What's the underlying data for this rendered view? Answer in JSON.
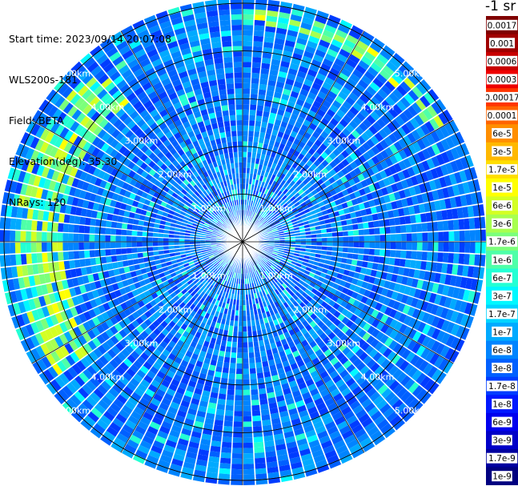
{
  "info": {
    "start_time": "Start time: 2023/09/14 20:07:08",
    "instrument": "WLS200s-181",
    "field": "Field: BETA",
    "elevation": "Elevation(deg): 35.30",
    "nrays": "NRays: 120"
  },
  "colorbar": {
    "unit": "-1 sr",
    "labels": [
      "0.0017",
      "0.001",
      "0.0006",
      "0.0003",
      "0.00017",
      "0.0001",
      "6e-5",
      "3e-5",
      "1.7e-5",
      "1e-5",
      "6e-6",
      "3e-6",
      "1.7e-6",
      "1e-6",
      "6e-7",
      "3e-7",
      "1.7e-7",
      "1e-7",
      "6e-8",
      "3e-8",
      "1.7e-8",
      "1e-8",
      "6e-9",
      "3e-9",
      "1.7e-9",
      "1e-9"
    ],
    "colors": [
      "#7f0000",
      "#a00000",
      "#c80000",
      "#ee0000",
      "#ff3500",
      "#ff6400",
      "#ff8e00",
      "#ffb800",
      "#ffde00",
      "#ffff00",
      "#d4ff23",
      "#a8ff4f",
      "#7bff7b",
      "#4fffa8",
      "#23ffd4",
      "#00f8ff",
      "#00d4ff",
      "#00aaff",
      "#0084ff",
      "#0060ff",
      "#003cff",
      "#0018ff",
      "#0000ee",
      "#0000c8",
      "#0000a0",
      "#000080"
    ]
  },
  "chart_data": {
    "type": "heatmap",
    "projection": "polar-ppi",
    "title": "",
    "field": "BETA",
    "units": "-1 sr",
    "elevation_deg": 35.3,
    "n_rays": 120,
    "range_rings_km": [
      1.0,
      2.0,
      3.0,
      4.0,
      5.0
    ],
    "ring_labels": [
      "1.00km",
      "2.00km",
      "3.00km",
      "4.00km",
      "5.00km"
    ],
    "max_range_km": 5.1,
    "color_scale": "log",
    "color_range": [
      1e-09,
      0.0017
    ],
    "typical_value_range": [
      6e-09,
      3e-07
    ],
    "high_value_features": [
      {
        "azimuth_deg_range": [
          0,
          60
        ],
        "range_km": [
          4.6,
          4.9
        ],
        "value_peak": 1e-05
      },
      {
        "azimuth_deg_range": [
          235,
          320
        ],
        "range_km": [
          3.8,
          4.8
        ],
        "value_peak": 1e-05
      }
    ]
  }
}
